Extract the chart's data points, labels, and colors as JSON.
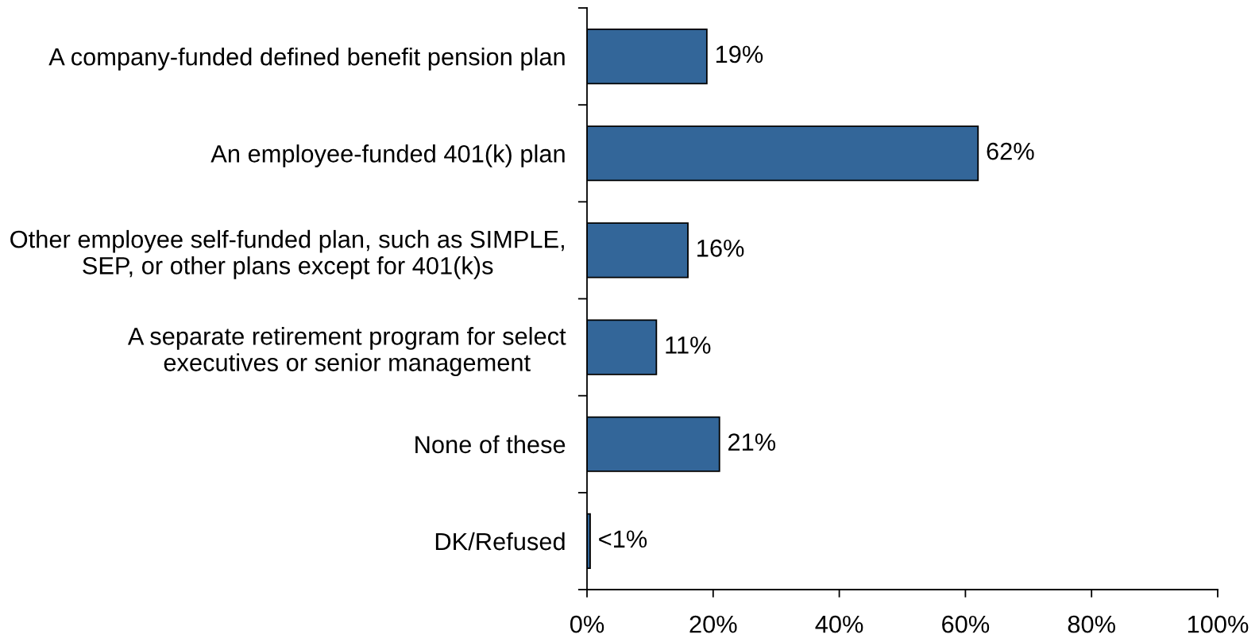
{
  "chart_data": {
    "type": "bar",
    "orientation": "horizontal",
    "categories": [
      "A company-funded defined benefit pension plan",
      "An employee-funded 401(k) plan",
      "Other employee self-funded plan, such as SIMPLE,\nSEP, or other plans except for 401(k)s",
      "A separate retirement program for select\nexecutives or senior management",
      "None of these",
      "DK/Refused"
    ],
    "values": [
      19,
      62,
      16,
      11,
      21,
      0.5
    ],
    "value_labels": [
      "19%",
      "62%",
      "16%",
      "11%",
      "21%",
      "<1%"
    ],
    "color": "#336699",
    "xlim": [
      0,
      100
    ],
    "xticks": [
      {
        "value": 0,
        "label": "0%"
      },
      {
        "value": 20,
        "label": "20%"
      },
      {
        "value": 40,
        "label": "40%"
      },
      {
        "value": 60,
        "label": "60%"
      },
      {
        "value": 80,
        "label": "80%"
      },
      {
        "value": 100,
        "label": "100%"
      }
    ]
  }
}
